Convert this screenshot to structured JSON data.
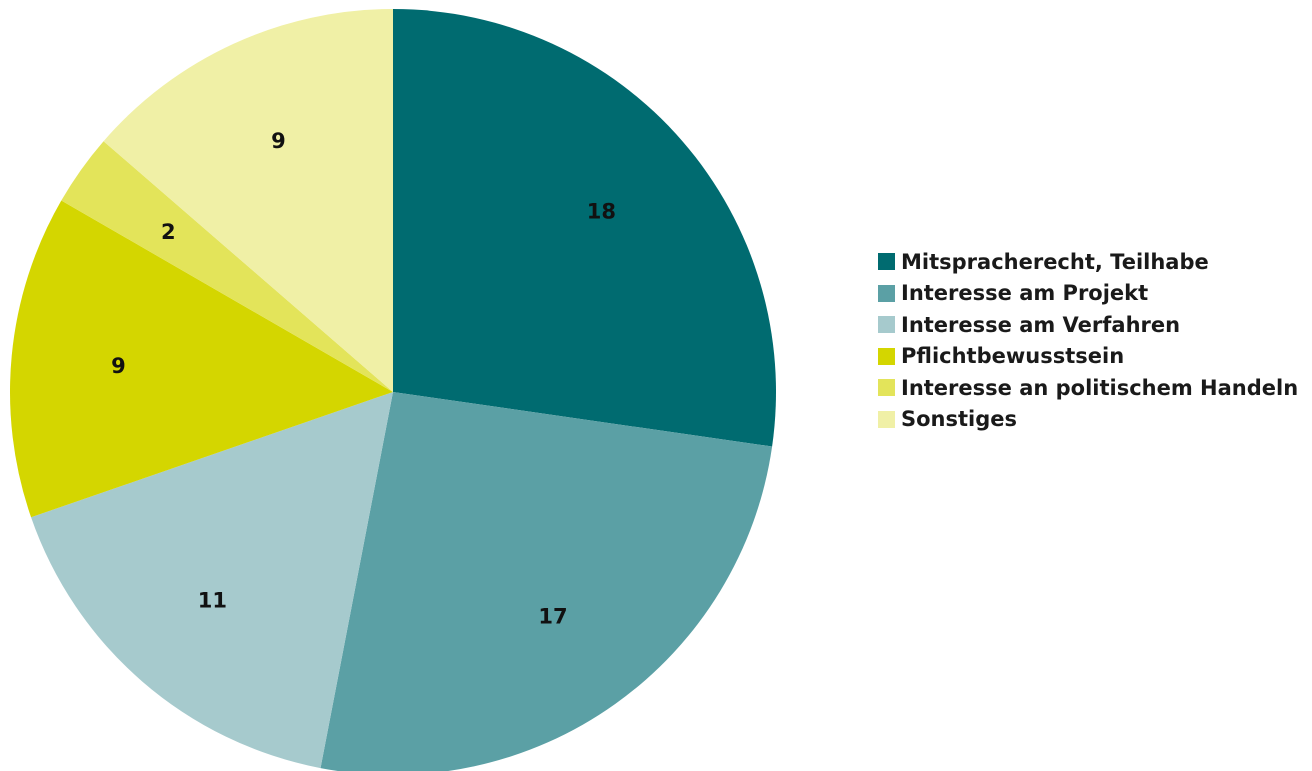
{
  "chart_data": {
    "type": "pie",
    "title": "",
    "categories": [
      "Mitspracherecht, Teilhabe",
      "Interesse am Projekt",
      "Interesse am Verfahren",
      "Pflichtbewusstsein",
      "Interesse an politischem Handeln",
      "Sonstiges"
    ],
    "values": [
      18,
      17,
      11,
      9,
      2,
      9
    ],
    "colors": [
      "#006b70",
      "#5ba0a5",
      "#a6cacd",
      "#d4d600",
      "#e3e45a",
      "#f0f0a6"
    ],
    "start_angle": "12 o'clock",
    "direction": "clockwise",
    "legend_position": "right"
  }
}
